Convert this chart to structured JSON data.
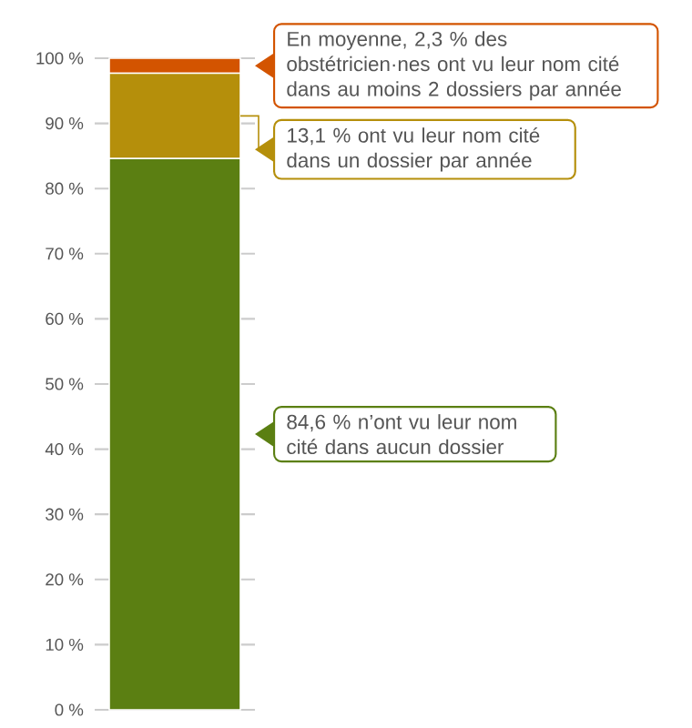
{
  "chart_data": {
    "type": "bar",
    "stacked": true,
    "categories": [
      null
    ],
    "series": [
      {
        "color": "#5b7f12",
        "values": [
          84.6
        ]
      },
      {
        "color": "#b58f0b",
        "values": [
          13.1
        ]
      },
      {
        "color": "#d35400",
        "values": [
          2.3
        ]
      }
    ],
    "ylim": [
      0,
      100
    ],
    "yticks": [
      {
        "value": 0,
        "label": "0 %"
      },
      {
        "value": 10,
        "label": "10 %"
      },
      {
        "value": 20,
        "label": "20 %"
      },
      {
        "value": 30,
        "label": "30 %"
      },
      {
        "value": 40,
        "label": "40 %"
      },
      {
        "value": 50,
        "label": "50 %"
      },
      {
        "value": 60,
        "label": "60 %"
      },
      {
        "value": 70,
        "label": "70 %"
      },
      {
        "value": 80,
        "label": "80 %"
      },
      {
        "value": 90,
        "label": "90 %"
      },
      {
        "value": 100,
        "label": "100 %"
      }
    ],
    "grid": "y",
    "annotations": [
      "84,6 % n’ont vu leur nom cité dans aucun dossier",
      "13,1 % ont vu leur nom cité dans un dossier par année",
      "En moyenne, 2,3 % des obstétricien·nes ont vu leur nom cité dans au moins 2 dossiers par année"
    ]
  }
}
